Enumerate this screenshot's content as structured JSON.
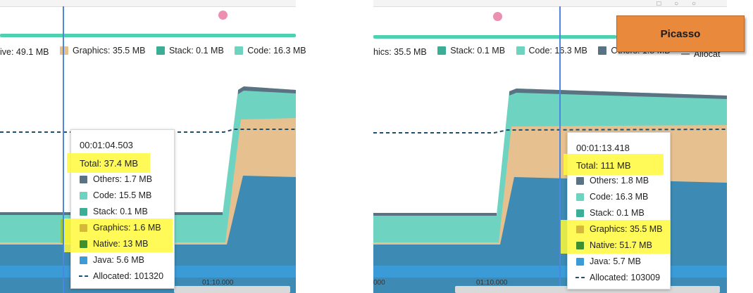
{
  "colors": {
    "java": "#3b8fbf",
    "native": "#3d8ab4",
    "graphics": "#e6c08f",
    "stack": "#3cae98",
    "code": "#6fd3c2",
    "others": "#5b7282",
    "allocated_line": "#1f4f6e",
    "cursor": "#4d86e0"
  },
  "left_panel": {
    "legend": [
      {
        "label": "ive: 49.1 MB",
        "swatch": ""
      },
      {
        "label": "Graphics: 35.5 MB",
        "swatch": "#e6c08f"
      },
      {
        "label": "Stack: 0.1 MB",
        "swatch": "#3cae98"
      },
      {
        "label": "Code: 16.3 MB",
        "swatch": "#6fd3c2"
      }
    ],
    "tick_label": "01:10.000",
    "tooltip": {
      "time": "00:01:04.503",
      "total": "Total: 37.4 MB",
      "rows": [
        {
          "label": "Others: 1.7 MB",
          "color": "#5b7282"
        },
        {
          "label": "Code: 15.5 MB",
          "color": "#6fd3c2"
        },
        {
          "label": "Stack: 0.1 MB",
          "color": "#3cae98"
        },
        {
          "label": "Graphics: 1.6 MB",
          "color": "#d6b83a"
        },
        {
          "label": "Native: 13 MB",
          "color": "#3f8f2f"
        },
        {
          "label": "Java: 5.6 MB",
          "color": "#3b9bd6"
        },
        {
          "label": "Allocated: 101320",
          "color": "dashed"
        }
      ]
    }
  },
  "right_panel": {
    "legend": [
      {
        "label": "hics: 35.5 MB",
        "swatch": ""
      },
      {
        "label": "Stack: 0.1 MB",
        "swatch": "#3cae98"
      },
      {
        "label": "Code: 16.3 MB",
        "swatch": "#6fd3c2"
      },
      {
        "label": "Others: 1.8 MB",
        "swatch": "#5b7282"
      },
      {
        "label": "Allocat",
        "swatch": "dashed"
      }
    ],
    "tick_left": "000",
    "tick_label": "01:10.000",
    "tooltip": {
      "time": "00:01:13.418",
      "total": "Total: 111 MB",
      "rows": [
        {
          "label": "Others: 1.8 MB",
          "color": "#5b7282"
        },
        {
          "label": "Code: 16.3 MB",
          "color": "#6fd3c2"
        },
        {
          "label": "Stack: 0.1 MB",
          "color": "#3cae98"
        },
        {
          "label": "Graphics: 35.5 MB",
          "color": "#d6b83a"
        },
        {
          "label": "Native: 51.7 MB",
          "color": "#3f8f2f"
        },
        {
          "label": "Java: 5.7 MB",
          "color": "#3b9bd6"
        },
        {
          "label": "Allocated: 103009",
          "color": "dashed"
        }
      ]
    }
  },
  "picasso_label": "Picasso",
  "window_controls": "□ ○ ○"
}
